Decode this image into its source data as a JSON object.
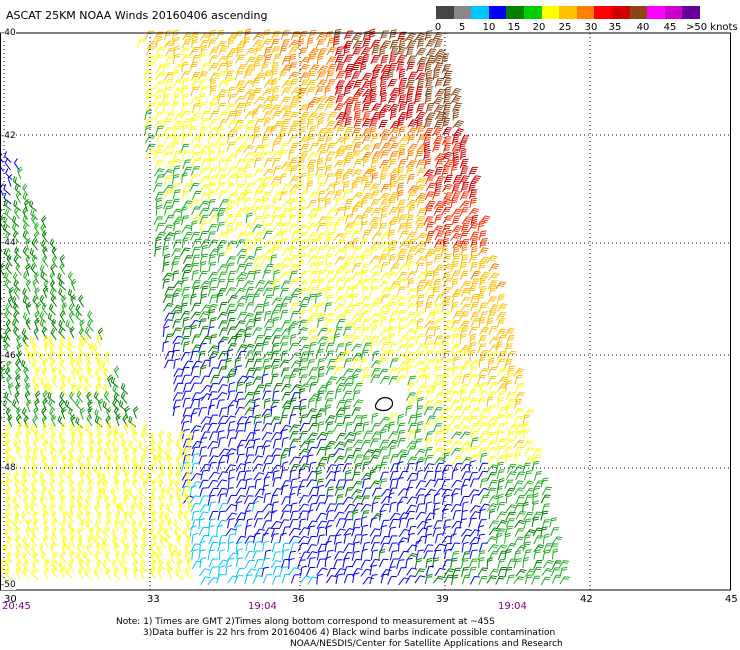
{
  "title": "ASCAT 25KM NOAA Winds 20160406 ascending",
  "scale": {
    "colors": [
      "#444444",
      "#888888",
      "#00c8ff",
      "#0000ff",
      "#008000",
      "#00d000",
      "#ffff00",
      "#ffc000",
      "#ff8000",
      "#ff0000",
      "#d00000",
      "#8b4513",
      "#ff00ff",
      "#cc00cc",
      "#660099"
    ],
    "labels": [
      "0",
      "5",
      "10",
      "15",
      "20",
      "25",
      "30",
      "35",
      "40",
      "45",
      ">50 knots"
    ]
  },
  "lat_labels": [
    "-40",
    "-42",
    "-44",
    "-46",
    "-48",
    "-50"
  ],
  "lon_labels": [
    "30",
    "33",
    "36",
    "39",
    "42",
    "45"
  ],
  "time_labels": [
    "20:45",
    "19:04",
    "19:04"
  ],
  "notes": {
    "line1": "Note: 1) Times are GMT 2)Times along bottom correspond to measurement at ~45S",
    "line2": "3)Data buffer is 22 hrs from 20160406 4) Black wind barbs indicate possible contamination",
    "line3": "NOAA/NESDIS/Center for Satellite Applications and Research"
  }
}
